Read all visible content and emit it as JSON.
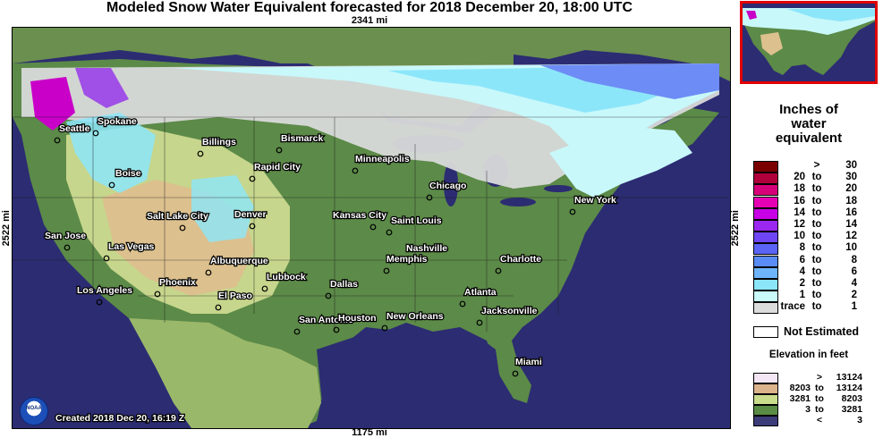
{
  "title": "Modeled Snow Water Equivalent forecasted for 2018 December 20, 18:00 UTC",
  "scale": {
    "top": "2341 mi",
    "left": "2522 mi",
    "right": "2522 mi",
    "bottom": "1175 mi"
  },
  "created": "Created 2018 Dec 20, 16:19 Z",
  "logo_text": "NOAA",
  "cities": [
    {
      "name": "Seattle"
    },
    {
      "name": "Spokane"
    },
    {
      "name": "Billings"
    },
    {
      "name": "Bismarck"
    },
    {
      "name": "Minneapolis"
    },
    {
      "name": "Rapid City"
    },
    {
      "name": "Boise"
    },
    {
      "name": "Chicago"
    },
    {
      "name": "New York"
    },
    {
      "name": "Salt Lake City"
    },
    {
      "name": "Denver"
    },
    {
      "name": "Kansas City"
    },
    {
      "name": "Saint Louis"
    },
    {
      "name": "San Jose"
    },
    {
      "name": "Las Vegas"
    },
    {
      "name": "Nashville"
    },
    {
      "name": "Albuquerque"
    },
    {
      "name": "Memphis"
    },
    {
      "name": "Charlotte"
    },
    {
      "name": "Los Angeles"
    },
    {
      "name": "Phoenix"
    },
    {
      "name": "Lubbock"
    },
    {
      "name": "Dallas"
    },
    {
      "name": "Atlanta"
    },
    {
      "name": "El Paso"
    },
    {
      "name": "Jacksonville"
    },
    {
      "name": "San Antonio"
    },
    {
      "name": "Houston"
    },
    {
      "name": "New Orleans"
    },
    {
      "name": "Miami"
    }
  ],
  "legend": {
    "title_lines": [
      "Inches of",
      "water",
      "equivalent"
    ],
    "rows": [
      {
        "a": "",
        "b": ">",
        "c": "30",
        "color": "#7a0000"
      },
      {
        "a": "20",
        "b": "to",
        "c": "30",
        "color": "#b0003c"
      },
      {
        "a": "18",
        "b": "to",
        "c": "20",
        "color": "#d60078"
      },
      {
        "a": "16",
        "b": "to",
        "c": "18",
        "color": "#e600b4"
      },
      {
        "a": "14",
        "b": "to",
        "c": "16",
        "color": "#c800e6"
      },
      {
        "a": "12",
        "b": "to",
        "c": "14",
        "color": "#9a28f0"
      },
      {
        "a": "10",
        "b": "to",
        "c": "12",
        "color": "#6e46f5"
      },
      {
        "a": "8",
        "b": "to",
        "c": "10",
        "color": "#5a64f5"
      },
      {
        "a": "6",
        "b": "to",
        "c": "8",
        "color": "#5a8cf5"
      },
      {
        "a": "4",
        "b": "to",
        "c": "6",
        "color": "#6eb4fa"
      },
      {
        "a": "2",
        "b": "to",
        "c": "4",
        "color": "#8ce6fa"
      },
      {
        "a": "1",
        "b": "to",
        "c": "2",
        "color": "#c8fafa"
      },
      {
        "a": "trace",
        "b": "to",
        "c": "1",
        "color": "#dcdcdc"
      }
    ],
    "not_estimated": "Not Estimated",
    "elevation_title": "Elevation in feet",
    "elevation_rows": [
      {
        "a": "",
        "b": ">",
        "c": "13124",
        "color": "#f5e6f5"
      },
      {
        "a": "8203",
        "b": "to",
        "c": "13124",
        "color": "#dcb48c"
      },
      {
        "a": "3281",
        "b": "to",
        "c": "8203",
        "color": "#c8dc8c"
      },
      {
        "a": "3",
        "b": "to",
        "c": "3281",
        "color": "#5a8c46"
      },
      {
        "a": "",
        "b": "<",
        "c": "3",
        "color": "#3c3c78"
      }
    ]
  },
  "colors": {
    "ocean": "#2c2c72",
    "lowland": "#5c8a48",
    "midland": "#90ae60",
    "plains": "#c6d68c",
    "highland": "#dcc08e",
    "snow_trace": "#d8dada",
    "snow_light": "#c8f8fa",
    "snow_mid": "#8ce6fa",
    "snow_blue": "#6e8cf5",
    "snow_deep": "#c800c8",
    "inset_border": "#e00000"
  }
}
